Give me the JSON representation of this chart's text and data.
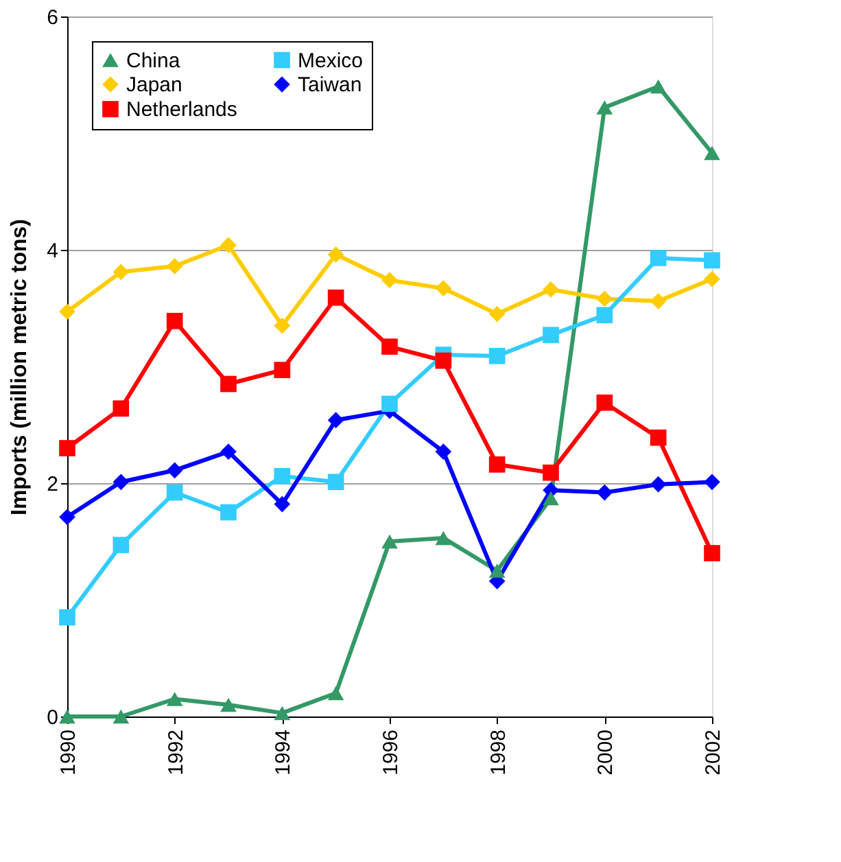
{
  "chart_data": {
    "type": "line",
    "ylabel": "Imports (million metric tons)",
    "x": [
      1990,
      1991,
      1992,
      1993,
      1994,
      1995,
      1996,
      1997,
      1998,
      1999,
      2000,
      2001,
      2002
    ],
    "xlim": [
      1990,
      2002
    ],
    "xticks": [
      1990,
      1992,
      1994,
      1996,
      1998,
      2000,
      2002
    ],
    "ylim": [
      0,
      6
    ],
    "yticks": [
      0,
      2,
      4,
      6
    ],
    "grid": "y",
    "legend": "top left",
    "series": [
      {
        "name": "China",
        "color": "#339966",
        "marker": "triangle",
        "values": [
          0,
          0,
          0.15,
          0.1,
          0.03,
          0.2,
          1.5,
          1.53,
          1.25,
          1.87,
          5.22,
          5.4,
          4.83
        ]
      },
      {
        "name": "Japan",
        "color": "#ffcc00",
        "marker": "diamond",
        "values": [
          3.47,
          3.81,
          3.86,
          4.04,
          3.35,
          3.96,
          3.74,
          3.67,
          3.45,
          3.66,
          3.58,
          3.56,
          3.75
        ]
      },
      {
        "name": "Netherlands",
        "color": "#ff0000",
        "marker": "square",
        "values": [
          2.3,
          2.64,
          3.39,
          2.85,
          2.97,
          3.59,
          3.17,
          3.05,
          2.16,
          2.09,
          2.69,
          2.39,
          1.4
        ]
      },
      {
        "name": "Mexico",
        "color": "#33ccff",
        "marker": "square",
        "values": [
          0.85,
          1.47,
          1.92,
          1.75,
          2.06,
          2.01,
          2.68,
          3.1,
          3.09,
          3.27,
          3.44,
          3.93,
          3.91
        ]
      },
      {
        "name": "Taiwan",
        "color": "#0000ff",
        "marker": "diamond",
        "values": [
          1.71,
          2.01,
          2.11,
          2.27,
          1.82,
          2.54,
          2.62,
          2.27,
          1.16,
          1.94,
          1.92,
          1.99,
          2.01
        ]
      }
    ]
  }
}
